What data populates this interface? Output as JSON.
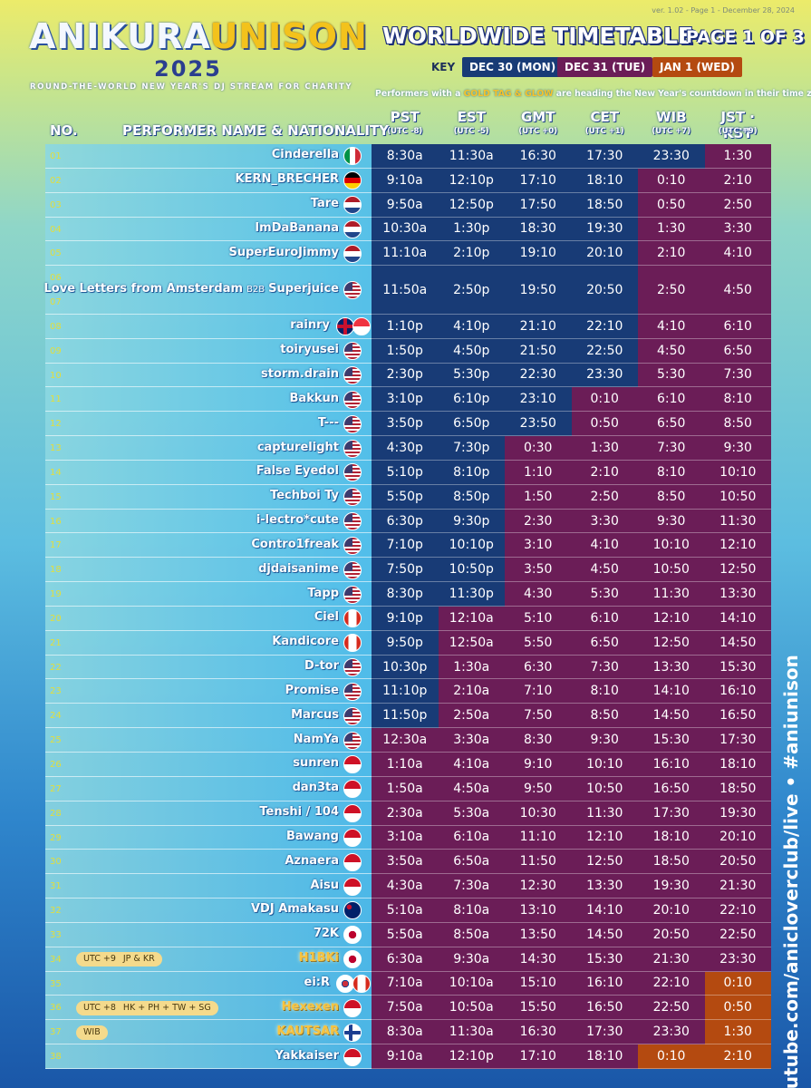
{
  "header": {
    "version": "ver. 1.02 - Page 1 - December 28, 2024",
    "logo": [
      "ANIKURA",
      "UNISON"
    ],
    "year": "2025",
    "subtitle": "ROUND-THE-WORLD NEW YEAR'S DJ STREAM FOR CHARITY",
    "title": "WORLDWIDE TIMETABLE",
    "page": "PAGE 1 OF 3",
    "key_label": "KEY",
    "key": [
      {
        "label": "DEC 30 (MON)",
        "color": "#183b76"
      },
      {
        "label": "DEC 31 (TUE)",
        "color": "#6b1d57"
      },
      {
        "label": "JAN 1 (WED)",
        "color": "#b44a10"
      }
    ],
    "note": [
      "Performers with a ",
      "GOLD TAG & GLOW",
      " are heading the New Year's countdown in their time zone!"
    ]
  },
  "table": {
    "columns": {
      "no": "NO.",
      "performer": "PERFORMER NAME & NATIONALITY",
      "zones": [
        {
          "name": "PST",
          "offset": "(UTC -8)"
        },
        {
          "name": "EST",
          "offset": "(UTC -5)"
        },
        {
          "name": "GMT",
          "offset": "(UTC +0)"
        },
        {
          "name": "CET",
          "offset": "(UTC +1)"
        },
        {
          "name": "WIB",
          "offset": "(UTC +7)"
        },
        {
          "name": "JST · KST",
          "offset": "(UTC +9)"
        }
      ]
    },
    "rows": [
      {
        "no": [
          "01"
        ],
        "name": "Cinderella",
        "times": [
          "8:30a",
          "11:30a",
          "16:30",
          "17:30",
          "23:30",
          "1:30"
        ],
        "colors": [
          "#183b76",
          "#183b76",
          "#183b76",
          "#183b76",
          "#183b76",
          "#6b1d57"
        ]
      },
      {
        "no": [
          "02"
        ],
        "name": "KERN_BRECHER",
        "times": [
          "9:10a",
          "12:10p",
          "17:10",
          "18:10",
          "0:10",
          "2:10"
        ],
        "colors": [
          "#183b76",
          "#183b76",
          "#183b76",
          "#183b76",
          "#6b1d57",
          "#6b1d57"
        ]
      },
      {
        "no": [
          "03"
        ],
        "name": "Tare",
        "times": [
          "9:50a",
          "12:50p",
          "17:50",
          "18:50",
          "0:50",
          "2:50"
        ],
        "colors": [
          "#183b76",
          "#183b76",
          "#183b76",
          "#183b76",
          "#6b1d57",
          "#6b1d57"
        ]
      },
      {
        "no": [
          "04"
        ],
        "name": "ImDaBanana",
        "times": [
          "10:30a",
          "1:30p",
          "18:30",
          "19:30",
          "1:30",
          "3:30"
        ],
        "colors": [
          "#183b76",
          "#183b76",
          "#183b76",
          "#183b76",
          "#6b1d57",
          "#6b1d57"
        ]
      },
      {
        "no": [
          "05"
        ],
        "name": "SuperEuroJimmy",
        "times": [
          "11:10a",
          "2:10p",
          "19:10",
          "20:10",
          "2:10",
          "4:10"
        ],
        "colors": [
          "#183b76",
          "#183b76",
          "#183b76",
          "#183b76",
          "#6b1d57",
          "#6b1d57"
        ]
      },
      {
        "no": [
          "06",
          "07"
        ],
        "name": "Love Letters from Amsterdam",
        "b2b": "B2B",
        "name2": "Superjuice",
        "times": [
          "11:50a",
          "2:50p",
          "19:50",
          "20:50",
          "2:50",
          "4:50"
        ],
        "colors": [
          "#183b76",
          "#183b76",
          "#183b76",
          "#183b76",
          "#6b1d57",
          "#6b1d57"
        ]
      },
      {
        "no": [
          "08"
        ],
        "name": "rainry",
        "times": [
          "1:10p",
          "4:10p",
          "21:10",
          "22:10",
          "4:10",
          "6:10"
        ],
        "colors": [
          "#183b76",
          "#183b76",
          "#183b76",
          "#183b76",
          "#6b1d57",
          "#6b1d57"
        ]
      },
      {
        "no": [
          "09"
        ],
        "name": "toiryusei",
        "times": [
          "1:50p",
          "4:50p",
          "21:50",
          "22:50",
          "4:50",
          "6:50"
        ],
        "colors": [
          "#183b76",
          "#183b76",
          "#183b76",
          "#183b76",
          "#6b1d57",
          "#6b1d57"
        ]
      },
      {
        "no": [
          "10"
        ],
        "name": "storm.drain",
        "times": [
          "2:30p",
          "5:30p",
          "22:30",
          "23:30",
          "5:30",
          "7:30"
        ],
        "colors": [
          "#183b76",
          "#183b76",
          "#183b76",
          "#183b76",
          "#6b1d57",
          "#6b1d57"
        ]
      },
      {
        "no": [
          "11"
        ],
        "name": "Bakkun",
        "times": [
          "3:10p",
          "6:10p",
          "23:10",
          "0:10",
          "6:10",
          "8:10"
        ],
        "colors": [
          "#183b76",
          "#183b76",
          "#183b76",
          "#6b1d57",
          "#6b1d57",
          "#6b1d57"
        ]
      },
      {
        "no": [
          "12"
        ],
        "name": "T---",
        "times": [
          "3:50p",
          "6:50p",
          "23:50",
          "0:50",
          "6:50",
          "8:50"
        ],
        "colors": [
          "#183b76",
          "#183b76",
          "#183b76",
          "#6b1d57",
          "#6b1d57",
          "#6b1d57"
        ]
      },
      {
        "no": [
          "13"
        ],
        "name": "capturelight",
        "times": [
          "4:30p",
          "7:30p",
          "0:30",
          "1:30",
          "7:30",
          "9:30"
        ],
        "colors": [
          "#183b76",
          "#183b76",
          "#6b1d57",
          "#6b1d57",
          "#6b1d57",
          "#6b1d57"
        ]
      },
      {
        "no": [
          "14"
        ],
        "name": "False Eyedol",
        "times": [
          "5:10p",
          "8:10p",
          "1:10",
          "2:10",
          "8:10",
          "10:10"
        ],
        "colors": [
          "#183b76",
          "#183b76",
          "#6b1d57",
          "#6b1d57",
          "#6b1d57",
          "#6b1d57"
        ]
      },
      {
        "no": [
          "15"
        ],
        "name": "Techboi Ty",
        "times": [
          "5:50p",
          "8:50p",
          "1:50",
          "2:50",
          "8:50",
          "10:50"
        ],
        "colors": [
          "#183b76",
          "#183b76",
          "#6b1d57",
          "#6b1d57",
          "#6b1d57",
          "#6b1d57"
        ]
      },
      {
        "no": [
          "16"
        ],
        "name": "i-lectro*cute",
        "times": [
          "6:30p",
          "9:30p",
          "2:30",
          "3:30",
          "9:30",
          "11:30"
        ],
        "colors": [
          "#183b76",
          "#183b76",
          "#6b1d57",
          "#6b1d57",
          "#6b1d57",
          "#6b1d57"
        ]
      },
      {
        "no": [
          "17"
        ],
        "name": "Contro1freak",
        "times": [
          "7:10p",
          "10:10p",
          "3:10",
          "4:10",
          "10:10",
          "12:10"
        ],
        "colors": [
          "#183b76",
          "#183b76",
          "#6b1d57",
          "#6b1d57",
          "#6b1d57",
          "#6b1d57"
        ]
      },
      {
        "no": [
          "18"
        ],
        "name": "djdaisanime",
        "times": [
          "7:50p",
          "10:50p",
          "3:50",
          "4:50",
          "10:50",
          "12:50"
        ],
        "colors": [
          "#183b76",
          "#183b76",
          "#6b1d57",
          "#6b1d57",
          "#6b1d57",
          "#6b1d57"
        ]
      },
      {
        "no": [
          "19"
        ],
        "name": "Tapp",
        "times": [
          "8:30p",
          "11:30p",
          "4:30",
          "5:30",
          "11:30",
          "13:30"
        ],
        "colors": [
          "#183b76",
          "#183b76",
          "#6b1d57",
          "#6b1d57",
          "#6b1d57",
          "#6b1d57"
        ]
      },
      {
        "no": [
          "20"
        ],
        "name": "Ciel",
        "times": [
          "9:10p",
          "12:10a",
          "5:10",
          "6:10",
          "12:10",
          "14:10"
        ],
        "colors": [
          "#183b76",
          "#6b1d57",
          "#6b1d57",
          "#6b1d57",
          "#6b1d57",
          "#6b1d57"
        ]
      },
      {
        "no": [
          "21"
        ],
        "name": "Kandicore",
        "times": [
          "9:50p",
          "12:50a",
          "5:50",
          "6:50",
          "12:50",
          "14:50"
        ],
        "colors": [
          "#183b76",
          "#6b1d57",
          "#6b1d57",
          "#6b1d57",
          "#6b1d57",
          "#6b1d57"
        ]
      },
      {
        "no": [
          "22"
        ],
        "name": "D-tor",
        "times": [
          "10:30p",
          "1:30a",
          "6:30",
          "7:30",
          "13:30",
          "15:30"
        ],
        "colors": [
          "#183b76",
          "#6b1d57",
          "#6b1d57",
          "#6b1d57",
          "#6b1d57",
          "#6b1d57"
        ]
      },
      {
        "no": [
          "23"
        ],
        "name": "Promise",
        "times": [
          "11:10p",
          "2:10a",
          "7:10",
          "8:10",
          "14:10",
          "16:10"
        ],
        "colors": [
          "#183b76",
          "#6b1d57",
          "#6b1d57",
          "#6b1d57",
          "#6b1d57",
          "#6b1d57"
        ]
      },
      {
        "no": [
          "24"
        ],
        "name": "Marcus",
        "times": [
          "11:50p",
          "2:50a",
          "7:50",
          "8:50",
          "14:50",
          "16:50"
        ],
        "colors": [
          "#183b76",
          "#6b1d57",
          "#6b1d57",
          "#6b1d57",
          "#6b1d57",
          "#6b1d57"
        ]
      },
      {
        "no": [
          "25"
        ],
        "name": "NamYa",
        "times": [
          "12:30a",
          "3:30a",
          "8:30",
          "9:30",
          "15:30",
          "17:30"
        ],
        "colors": [
          "#6b1d57",
          "#6b1d57",
          "#6b1d57",
          "#6b1d57",
          "#6b1d57",
          "#6b1d57"
        ]
      },
      {
        "no": [
          "26"
        ],
        "name": "sunren",
        "times": [
          "1:10a",
          "4:10a",
          "9:10",
          "10:10",
          "16:10",
          "18:10"
        ],
        "colors": [
          "#6b1d57",
          "#6b1d57",
          "#6b1d57",
          "#6b1d57",
          "#6b1d57",
          "#6b1d57"
        ]
      },
      {
        "no": [
          "27"
        ],
        "name": "dan3ta",
        "times": [
          "1:50a",
          "4:50a",
          "9:50",
          "10:50",
          "16:50",
          "18:50"
        ],
        "colors": [
          "#6b1d57",
          "#6b1d57",
          "#6b1d57",
          "#6b1d57",
          "#6b1d57",
          "#6b1d57"
        ]
      },
      {
        "no": [
          "28"
        ],
        "name": "Tenshi / 104",
        "times": [
          "2:30a",
          "5:30a",
          "10:30",
          "11:30",
          "17:30",
          "19:30"
        ],
        "colors": [
          "#6b1d57",
          "#6b1d57",
          "#6b1d57",
          "#6b1d57",
          "#6b1d57",
          "#6b1d57"
        ]
      },
      {
        "no": [
          "29"
        ],
        "name": "Bawang",
        "times": [
          "3:10a",
          "6:10a",
          "11:10",
          "12:10",
          "18:10",
          "20:10"
        ],
        "colors": [
          "#6b1d57",
          "#6b1d57",
          "#6b1d57",
          "#6b1d57",
          "#6b1d57",
          "#6b1d57"
        ]
      },
      {
        "no": [
          "30"
        ],
        "name": "Aznaera",
        "times": [
          "3:50a",
          "6:50a",
          "11:50",
          "12:50",
          "18:50",
          "20:50"
        ],
        "colors": [
          "#6b1d57",
          "#6b1d57",
          "#6b1d57",
          "#6b1d57",
          "#6b1d57",
          "#6b1d57"
        ]
      },
      {
        "no": [
          "31"
        ],
        "name": "Aisu",
        "times": [
          "4:30a",
          "7:30a",
          "12:30",
          "13:30",
          "19:30",
          "21:30"
        ],
        "colors": [
          "#6b1d57",
          "#6b1d57",
          "#6b1d57",
          "#6b1d57",
          "#6b1d57",
          "#6b1d57"
        ]
      },
      {
        "no": [
          "32"
        ],
        "name": "VDJ Amakasu",
        "times": [
          "5:10a",
          "8:10a",
          "13:10",
          "14:10",
          "20:10",
          "22:10"
        ],
        "colors": [
          "#6b1d57",
          "#6b1d57",
          "#6b1d57",
          "#6b1d57",
          "#6b1d57",
          "#6b1d57"
        ]
      },
      {
        "no": [
          "33"
        ],
        "name": "72K",
        "times": [
          "5:50a",
          "8:50a",
          "13:50",
          "14:50",
          "20:50",
          "22:50"
        ],
        "colors": [
          "#6b1d57",
          "#6b1d57",
          "#6b1d57",
          "#6b1d57",
          "#6b1d57",
          "#6b1d57"
        ]
      },
      {
        "no": [
          "34"
        ],
        "name": "H1BKi",
        "tag": {
          "utc": "UTC +9",
          "where": "JP & KR"
        },
        "times": [
          "6:30a",
          "9:30a",
          "14:30",
          "15:30",
          "21:30",
          "23:30"
        ],
        "colors": [
          "#6b1d57",
          "#6b1d57",
          "#6b1d57",
          "#6b1d57",
          "#6b1d57",
          "#6b1d57"
        ]
      },
      {
        "no": [
          "35"
        ],
        "name": "ei:R",
        "times": [
          "7:10a",
          "10:10a",
          "15:10",
          "16:10",
          "22:10",
          "0:10"
        ],
        "colors": [
          "#6b1d57",
          "#6b1d57",
          "#6b1d57",
          "#6b1d57",
          "#6b1d57",
          "#b44a10"
        ]
      },
      {
        "no": [
          "36"
        ],
        "name": "Hexexen",
        "tag": {
          "utc": "UTC +8",
          "where": "HK + PH + TW + SG"
        },
        "times": [
          "7:50a",
          "10:50a",
          "15:50",
          "16:50",
          "22:50",
          "0:50"
        ],
        "colors": [
          "#6b1d57",
          "#6b1d57",
          "#6b1d57",
          "#6b1d57",
          "#6b1d57",
          "#b44a10"
        ]
      },
      {
        "no": [
          "37"
        ],
        "name": "KAUTSAR",
        "tag": {
          "where": "WIB"
        },
        "times": [
          "8:30a",
          "11:30a",
          "16:30",
          "17:30",
          "23:30",
          "1:30"
        ],
        "colors": [
          "#6b1d57",
          "#6b1d57",
          "#6b1d57",
          "#6b1d57",
          "#6b1d57",
          "#b44a10"
        ]
      },
      {
        "no": [
          "38"
        ],
        "name": "Yakkaiser",
        "times": [
          "9:10a",
          "12:10p",
          "17:10",
          "18:10",
          "0:10",
          "2:10"
        ],
        "colors": [
          "#6b1d57",
          "#6b1d57",
          "#6b1d57",
          "#6b1d57",
          "#b44a10",
          "#b44a10"
        ]
      }
    ]
  },
  "footer": {
    "side": "youtube.com/anicloverclub/live • #aniunison"
  }
}
